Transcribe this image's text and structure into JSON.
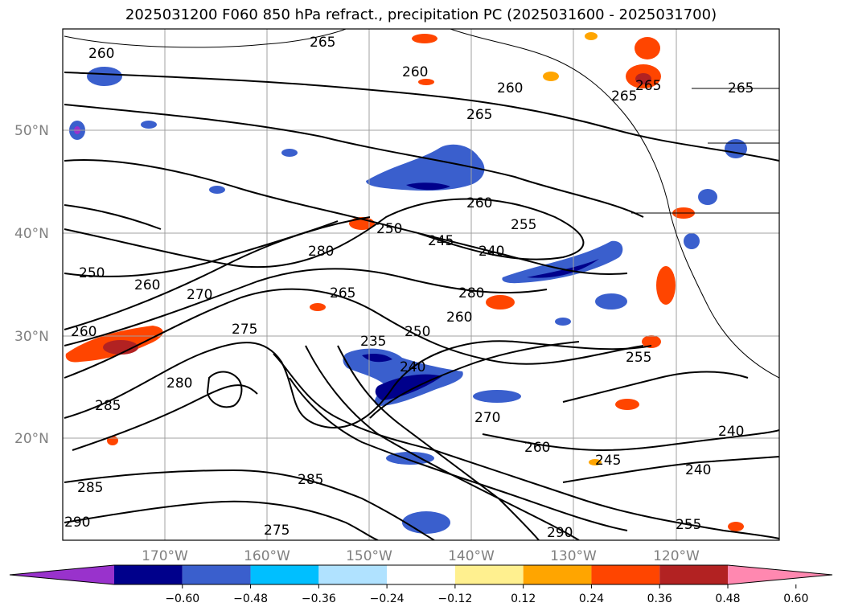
{
  "title": "2025031200 F060 850 hPa refract., precipitation PC (2025031600 - 2025031700)",
  "lat_labels": [
    "50°N",
    "40°N",
    "30°N",
    "20°N"
  ],
  "lon_labels": [
    "170°W",
    "160°W",
    "150°W",
    "140°W",
    "130°W",
    "120°W"
  ],
  "colorbar": {
    "colors": [
      "#9932cc",
      "#00008b",
      "#3a5fcd",
      "#00bfff",
      "#b0e2ff",
      "#ffffff",
      "#fff08f",
      "#ffa500",
      "#ff4500",
      "#b22222",
      "#ff88b0"
    ],
    "tick_labels": [
      "−0.60",
      "−0.48",
      "−0.36",
      "−0.24",
      "−0.12",
      "0.12",
      "0.24",
      "0.36",
      "0.48",
      "0.60"
    ]
  },
  "contour_labels": [
    "260",
    "265",
    "260",
    "260",
    "265",
    "265",
    "260",
    "255",
    "250",
    "245",
    "240",
    "280",
    "280",
    "260",
    "250",
    "265",
    "260",
    "270",
    "275",
    "235",
    "240",
    "250",
    "260",
    "270",
    "285",
    "280",
    "255",
    "285",
    "260",
    "245",
    "240",
    "240",
    "290",
    "285",
    "275",
    "255",
    "265",
    "290",
    "265"
  ]
}
